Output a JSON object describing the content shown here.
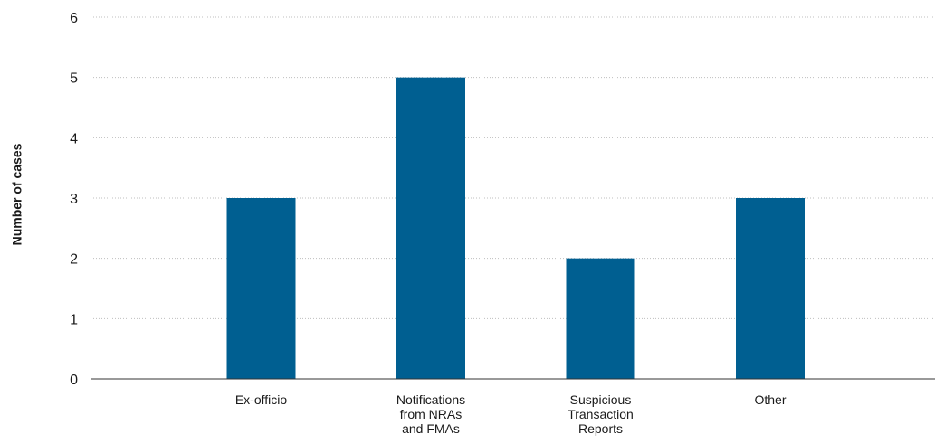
{
  "chart_data": {
    "type": "bar",
    "categories": [
      [
        "Ex-officio"
      ],
      [
        "Notifications",
        "from NRAs",
        "and FMAs"
      ],
      [
        "Suspicious",
        "Transaction",
        "Reports"
      ],
      [
        "Other"
      ]
    ],
    "values": [
      3,
      5,
      2,
      3
    ],
    "title": "",
    "xlabel": "",
    "ylabel": "Number of cases",
    "ylim": [
      0,
      6
    ],
    "yticks": [
      0,
      1,
      2,
      3,
      4,
      5,
      6
    ],
    "grid": true,
    "bar_color": "#005f91",
    "legend": "none"
  }
}
